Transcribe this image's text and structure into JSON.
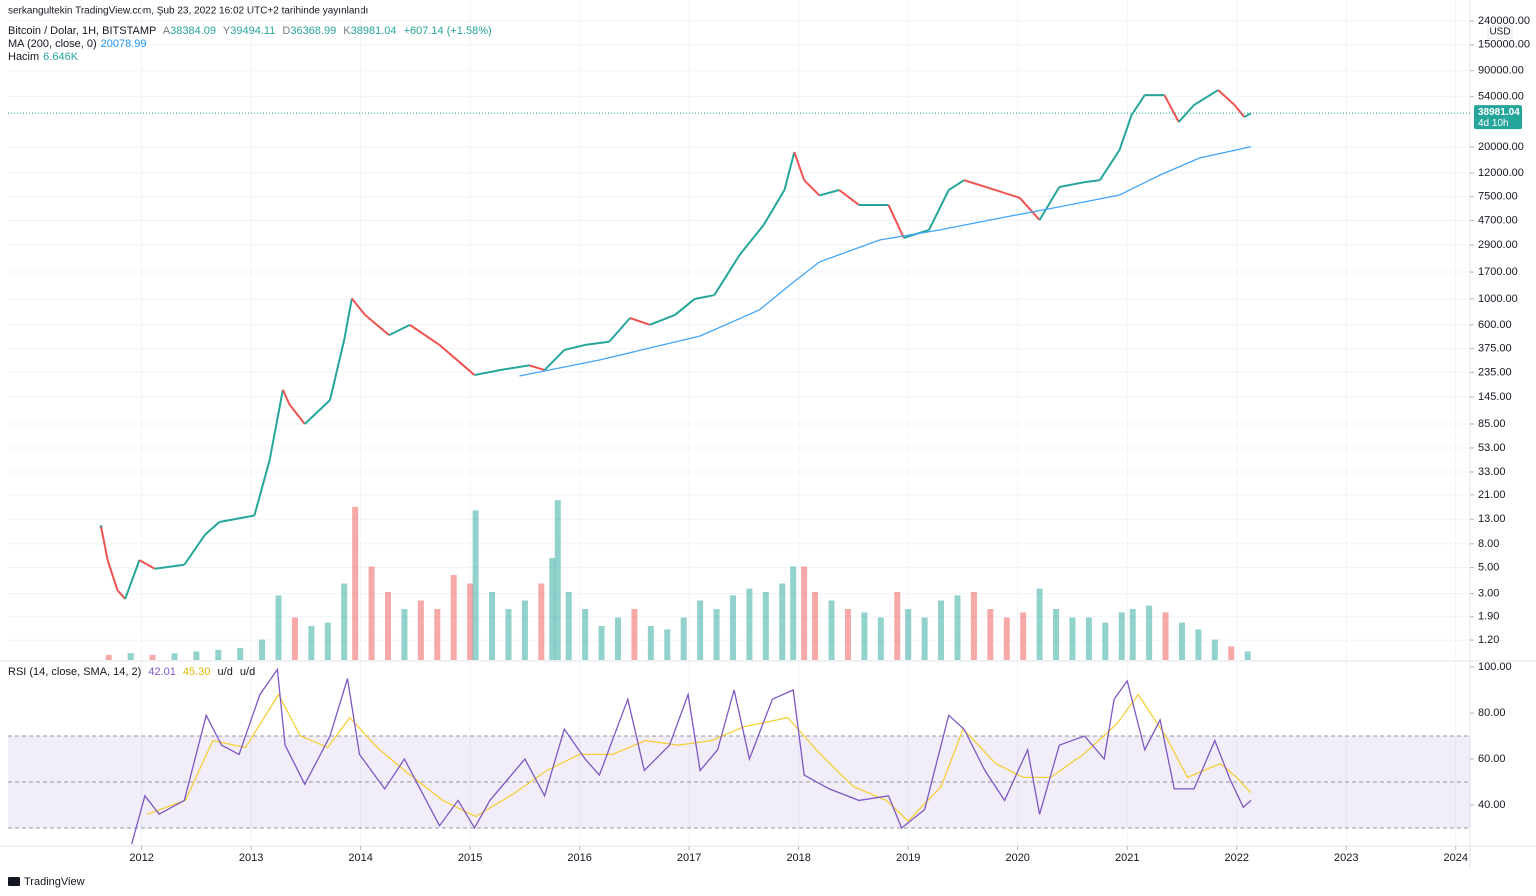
{
  "attribution": "serkangultekin TradingView.com, Şub 23, 2022 16:02 UTC+2 tarihinde yayınlandı",
  "footer": "TradingView",
  "chart_data": [
    {
      "type": "line",
      "title": "Bitcoin / Dolar, 1H, BITSTAMP",
      "ohlc": [
        {
          "label": "A",
          "value": "38384.09"
        },
        {
          "label": "Y",
          "value": "39494.11"
        },
        {
          "label": "D",
          "value": "36368.99"
        },
        {
          "label": "K",
          "value": "38981.04"
        }
      ],
      "change": "+607.14 (+1.58%)",
      "currency": "USD",
      "price_label": "38981.04",
      "countdown": "4d 10h",
      "log_scale": true,
      "grid": true,
      "xlim": [
        2010.78,
        2024.13
      ],
      "ylim": [
        0.81,
        363000
      ],
      "yticks": [
        {
          "value": 240000,
          "label": "240000.00"
        },
        {
          "value": 150000,
          "label": "150000.00"
        },
        {
          "value": 90000,
          "label": "90000.00"
        },
        {
          "value": 54000,
          "label": "54000.00"
        },
        {
          "value": 20000,
          "label": "20000.00"
        },
        {
          "value": 12000,
          "label": "12000.00"
        },
        {
          "value": 7500,
          "label": "7500.00"
        },
        {
          "value": 4700,
          "label": "4700.00"
        },
        {
          "value": 2900,
          "label": "2900.00"
        },
        {
          "value": 1700,
          "label": "1700.00"
        },
        {
          "value": 1000,
          "label": "1000.00"
        },
        {
          "value": 600,
          "label": "600.00"
        },
        {
          "value": 375,
          "label": "375.00"
        },
        {
          "value": 235,
          "label": "235.00"
        },
        {
          "value": 145,
          "label": "145.00"
        },
        {
          "value": 85,
          "label": "85.00"
        },
        {
          "value": 53,
          "label": "53.00"
        },
        {
          "value": 33,
          "label": "33.00"
        },
        {
          "value": 21,
          "label": "21.00"
        },
        {
          "value": 13,
          "label": "13.00"
        },
        {
          "value": 8,
          "label": "8.00"
        },
        {
          "value": 5,
          "label": "5.00"
        },
        {
          "value": 3,
          "label": "3.00"
        },
        {
          "value": 1.9,
          "label": "1.90"
        },
        {
          "value": 1.2,
          "label": "1.20"
        }
      ],
      "series": [
        {
          "name": "Bitcoin / Dolar, 1H, BITSTAMP",
          "up_color": "#26a69a",
          "down_color": "#ef5350",
          "x": [
            2011.63,
            2011.69,
            2011.78,
            2011.85,
            2011.98,
            2012.12,
            2012.39,
            2012.58,
            2012.71,
            2013.03,
            2013.17,
            2013.29,
            2013.35,
            2013.49,
            2013.72,
            2013.85,
            2013.92,
            2014.04,
            2014.26,
            2014.45,
            2014.72,
            2015.04,
            2015.27,
            2015.54,
            2015.68,
            2015.86,
            2016.05,
            2016.27,
            2016.46,
            2016.64,
            2016.87,
            2017.05,
            2017.23,
            2017.46,
            2017.68,
            2017.87,
            2017.96,
            2018.05,
            2018.19,
            2018.37,
            2018.55,
            2018.82,
            2018.96,
            2019.19,
            2019.37,
            2019.51,
            2019.74,
            2020.02,
            2020.2,
            2020.38,
            2020.61,
            2020.75,
            2020.93,
            2021.04,
            2021.16,
            2021.34,
            2021.47,
            2021.61,
            2021.83,
            2021.98,
            2022.07,
            2022.13
          ],
          "values": [
            11.2,
            5.8,
            3.2,
            2.7,
            5.8,
            4.9,
            5.3,
            9.6,
            12.3,
            14,
            42,
            167,
            125,
            85,
            136,
            446,
            1010,
            730,
            490,
            600,
            404,
            223,
            246,
            270,
            246,
            366,
            404,
            430,
            687,
            600,
            730,
            1000,
            1080,
            2380,
            4300,
            8570,
            18100,
            10400,
            7700,
            8570,
            6380,
            6380,
            3330,
            3900,
            8570,
            10400,
            8900,
            7330,
            4740,
            9100,
            10000,
            10400,
            18900,
            37600,
            55700,
            55700,
            32700,
            45800,
            61500,
            45800,
            36100,
            38981.04
          ]
        },
        {
          "name": "MA (200, close, 0)",
          "legend_value": "20078.99",
          "color": "#42a5f5",
          "x": [
            2015.45,
            2016.18,
            2017.1,
            2017.64,
            2017.92,
            2018.19,
            2018.74,
            2019.29,
            2019.84,
            2020.38,
            2020.93,
            2021.3,
            2021.66,
            2022.13
          ],
          "values": [
            219,
            300,
            482,
            805,
            1318,
            2075,
            3200,
            3900,
            4930,
            6140,
            7760,
            11530,
            16100,
            20078.99
          ]
        },
        {
          "name": "Hacim",
          "legend_value": "6.646K",
          "axis": "volume",
          "vlim": [
            0,
            100
          ],
          "up_color": "#26a69a",
          "down_color": "#ef5350",
          "x": [
            2011.7,
            2011.9,
            2012.1,
            2012.3,
            2012.5,
            2012.7,
            2012.9,
            2013.1,
            2013.25,
            2013.4,
            2013.55,
            2013.7,
            2013.85,
            2013.95,
            2014.1,
            2014.25,
            2014.4,
            2014.55,
            2014.7,
            2014.85,
            2015.0,
            2015.05,
            2015.2,
            2015.35,
            2015.5,
            2015.65,
            2015.75,
            2015.8,
            2015.9,
            2016.05,
            2016.2,
            2016.35,
            2016.5,
            2016.65,
            2016.8,
            2016.95,
            2017.1,
            2017.25,
            2017.4,
            2017.55,
            2017.7,
            2017.85,
            2017.95,
            2018.05,
            2018.15,
            2018.3,
            2018.45,
            2018.6,
            2018.75,
            2018.9,
            2019.0,
            2019.15,
            2019.3,
            2019.45,
            2019.6,
            2019.75,
            2019.9,
            2020.05,
            2020.2,
            2020.35,
            2020.5,
            2020.65,
            2020.8,
            2020.95,
            2021.05,
            2021.2,
            2021.35,
            2021.5,
            2021.65,
            2021.8,
            2021.95,
            2022.1
          ],
          "values": [
            3,
            4,
            3,
            4,
            5,
            6,
            7,
            12,
            38,
            25,
            20,
            22,
            45,
            90,
            55,
            40,
            30,
            35,
            30,
            50,
            45,
            88,
            40,
            30,
            35,
            45,
            60,
            94,
            40,
            30,
            20,
            25,
            30,
            20,
            18,
            25,
            35,
            30,
            38,
            42,
            40,
            45,
            55,
            55,
            40,
            35,
            30,
            28,
            25,
            40,
            30,
            25,
            35,
            38,
            40,
            30,
            25,
            28,
            42,
            30,
            25,
            25,
            22,
            28,
            30,
            32,
            28,
            22,
            18,
            12,
            8,
            5
          ]
        }
      ]
    },
    {
      "type": "line",
      "title": "RSI (14, close, SMA, 14, 2)",
      "extra_labels": [
        "u/d",
        "u/d"
      ],
      "xlim": [
        2010.78,
        2024.13
      ],
      "xticks": [
        2012,
        2013,
        2014,
        2015,
        2016,
        2017,
        2018,
        2019,
        2020,
        2021,
        2022,
        2023,
        2024
      ],
      "ylim": [
        22.6,
        102.2
      ],
      "yticks": [
        {
          "value": 100,
          "label": "100.00"
        },
        {
          "value": 80,
          "label": "80.00"
        },
        {
          "value": 60,
          "label": "60.00"
        },
        {
          "value": 40,
          "label": "40.00"
        }
      ],
      "bands": [
        30,
        50,
        70
      ],
      "band_color": "#7e57c2",
      "series": [
        {
          "legend_value": "42.01",
          "color": "#7e57c2",
          "x": [
            2011.91,
            2012.03,
            2012.16,
            2012.39,
            2012.59,
            2012.73,
            2012.89,
            2013.08,
            2013.24,
            2013.31,
            2013.49,
            2013.72,
            2013.88,
            2013.99,
            2014.22,
            2014.4,
            2014.72,
            2014.89,
            2015.04,
            2015.18,
            2015.5,
            2015.68,
            2015.86,
            2016.05,
            2016.18,
            2016.44,
            2016.59,
            2016.82,
            2016.99,
            2017.1,
            2017.26,
            2017.41,
            2017.55,
            2017.76,
            2017.95,
            2018.05,
            2018.28,
            2018.55,
            2018.82,
            2018.94,
            2019.15,
            2019.37,
            2019.51,
            2019.7,
            2019.88,
            2020.09,
            2020.2,
            2020.38,
            2020.61,
            2020.79,
            2020.88,
            2021.0,
            2021.16,
            2021.3,
            2021.43,
            2021.61,
            2021.8,
            2021.94,
            2022.06,
            2022.13
          ],
          "values": [
            23,
            44,
            36,
            42,
            79,
            66,
            62,
            88,
            99,
            66,
            49,
            70,
            95,
            62,
            47,
            60,
            31,
            42,
            30,
            42,
            60,
            44,
            73,
            60,
            53,
            86,
            55,
            66,
            88,
            55,
            64,
            90,
            60,
            86,
            90,
            53,
            47,
            42,
            44,
            30,
            38,
            79,
            73,
            55,
            42,
            64,
            36,
            66,
            70,
            60,
            86,
            94,
            64,
            77,
            47,
            47,
            68,
            51,
            39,
            42.01
          ]
        },
        {
          "legend_value": "45.30",
          "color": "#f5cf3b",
          "x": [
            2012.05,
            2012.4,
            2012.65,
            2012.95,
            2013.25,
            2013.45,
            2013.7,
            2013.9,
            2014.15,
            2014.4,
            2014.75,
            2015.05,
            2015.4,
            2015.7,
            2016.0,
            2016.3,
            2016.6,
            2016.9,
            2017.2,
            2017.5,
            2017.9,
            2018.2,
            2018.5,
            2018.8,
            2019.0,
            2019.3,
            2019.5,
            2019.8,
            2020.05,
            2020.3,
            2020.6,
            2020.9,
            2021.1,
            2021.35,
            2021.55,
            2021.85,
            2022.0,
            2022.13
          ],
          "values": [
            36,
            42,
            68,
            65,
            88,
            70,
            65,
            78,
            65,
            55,
            42,
            35,
            45,
            55,
            62,
            62,
            68,
            66,
            68,
            74,
            78,
            62,
            48,
            42,
            33,
            48,
            73,
            58,
            52,
            52,
            62,
            75,
            88,
            70,
            52,
            58,
            52,
            45.3
          ]
        }
      ]
    }
  ]
}
